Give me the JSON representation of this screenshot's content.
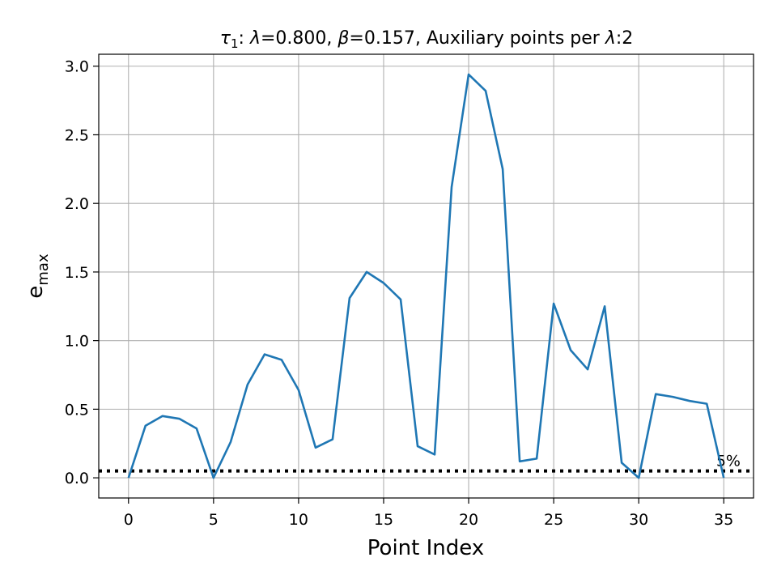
{
  "chart_data": {
    "type": "line",
    "title_parts": {
      "tau": "τ",
      "tau_sub": "1",
      "lambda_sym": "λ",
      "lambda_val": "=0.800, ",
      "beta_sym": "β",
      "beta_val": "=0.157, Auxiliary points per ",
      "lambda_sym2": "λ",
      "tail": ":2"
    },
    "xlabel": "Point Index",
    "ylabel_main": "e",
    "ylabel_sub": "max",
    "xlim": [
      -1.75,
      36.75
    ],
    "ylim": [
      -0.147,
      3.087
    ],
    "xticks": [
      0,
      5,
      10,
      15,
      20,
      25,
      30,
      35
    ],
    "yticks": [
      0.0,
      0.5,
      1.0,
      1.5,
      2.0,
      2.5,
      3.0
    ],
    "ytick_labels": [
      "0.0",
      "0.5",
      "1.0",
      "1.5",
      "2.0",
      "2.5",
      "3.0"
    ],
    "grid": true,
    "series": [
      {
        "color": "#1f77b4",
        "x": [
          0,
          1,
          2,
          3,
          4,
          5,
          6,
          7,
          8,
          9,
          10,
          11,
          12,
          13,
          14,
          15,
          16,
          17,
          18,
          19,
          20,
          21,
          22,
          23,
          24,
          25,
          26,
          27,
          28,
          29,
          30,
          31,
          32,
          33,
          34,
          35
        ],
        "values": [
          0.0,
          0.38,
          0.45,
          0.43,
          0.36,
          0.0,
          0.26,
          0.68,
          0.9,
          0.86,
          0.64,
          0.22,
          0.28,
          1.31,
          1.5,
          1.42,
          1.3,
          0.23,
          0.17,
          2.12,
          2.94,
          2.82,
          2.25,
          0.12,
          0.14,
          1.27,
          0.93,
          0.79,
          1.25,
          0.11,
          0.0,
          0.61,
          0.59,
          0.56,
          0.54,
          0.0
        ]
      }
    ],
    "reference_line": {
      "y": 0.05,
      "label": "5%",
      "style": "dotted",
      "color": "#000000"
    }
  }
}
